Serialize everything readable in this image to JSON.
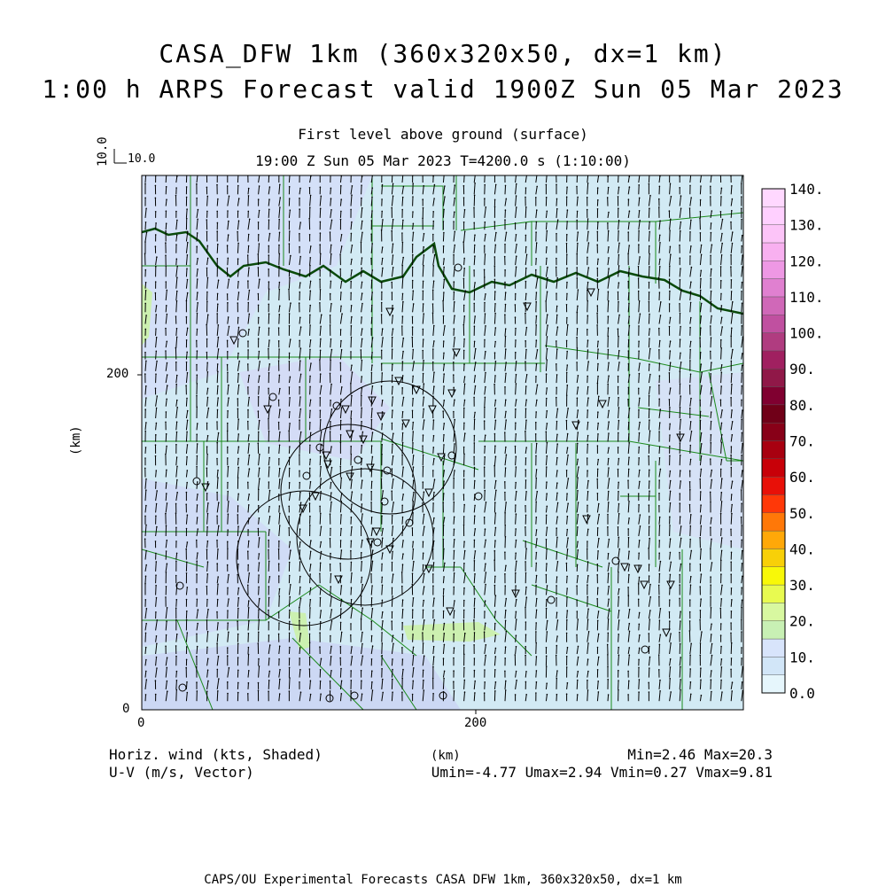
{
  "title": {
    "line1": "CASA_DFW 1km (360x320x50, dx=1 km)",
    "line2": "1:00 h ARPS Forecast valid 1900Z Sun 05 Mar 2023"
  },
  "subtitle": {
    "level": "First level above ground (surface)",
    "time": "19:00 Z Sun 05 Mar 2023    T=4200.0 s (1:10:00)"
  },
  "reference_vector": {
    "label_x": "10.0",
    "label_y": "10.0"
  },
  "axes": {
    "x_ticks": [
      "0",
      "200"
    ],
    "y_ticks": [
      "0",
      "200"
    ],
    "x_unit": "(km)",
    "y_unit": "(km)"
  },
  "colorbar": {
    "labels": [
      "0.0",
      "10.",
      "20.",
      "30.",
      "40.",
      "50.",
      "60.",
      "70.",
      "80.",
      "90.",
      "100.",
      "110.",
      "120.",
      "130.",
      "140."
    ],
    "colors": [
      "#e6f6fc",
      "#d2e6f8",
      "#d8e4fb",
      "#c8f0b4",
      "#d8f8a0",
      "#e8fa50",
      "#f8f808",
      "#f8d008",
      "#ffa808",
      "#ff7808",
      "#ff3808",
      "#e81008",
      "#c80008",
      "#a80010",
      "#880018",
      "#700018",
      "#800030",
      "#901848",
      "#a02060",
      "#b03c80",
      "#c050a0",
      "#d068b8",
      "#e080d0",
      "#ee98e4",
      "#f8b0f0",
      "#fcc4f8",
      "#ffd0ff",
      "#ffd8ff"
    ]
  },
  "footer": {
    "left1": "Horiz. wind (kts, Shaded)",
    "left2": "U-V (m/s, Vector)",
    "center": "(km)",
    "right1": "Min=2.46 Max=20.3",
    "right2": "Umin=-4.77 Umax=2.94 Vmin=0.27 Vmax=9.81",
    "credit": "CAPS/OU Experimental Forecasts  CASA DFW 1km, 360x320x50, dx=1 km"
  }
}
